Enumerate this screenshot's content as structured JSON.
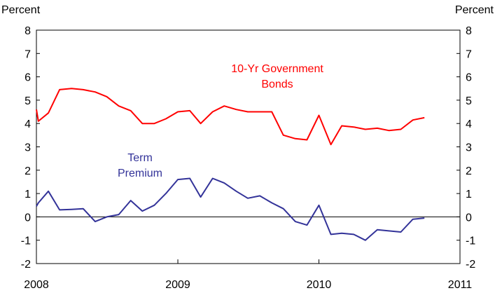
{
  "chart_data": {
    "type": "line",
    "ylabel_left": "Percent",
    "ylabel_right": "Percent",
    "ylim": [
      -2,
      8
    ],
    "yticks": [
      "-2",
      "-1",
      "0",
      "1",
      "2",
      "3",
      "4",
      "5",
      "6",
      "7",
      "8"
    ],
    "xlim": [
      "2008-01-01",
      "2011-01-01"
    ],
    "xtick_labels": [
      "2008",
      "2009",
      "2010",
      "2011"
    ],
    "grid": false,
    "series": [
      {
        "name": "10-Yr Government Bonds",
        "label_lines": [
          "10-Yr Government",
          "Bonds"
        ],
        "color": "#ff0000",
        "dates": [
          "2008-01-01",
          "2008-01-06",
          "2008-02-01",
          "2008-03-01",
          "2008-04-01",
          "2008-05-01",
          "2008-06-01",
          "2008-07-01",
          "2008-08-01",
          "2008-09-01",
          "2008-10-01",
          "2008-11-01",
          "2008-12-01",
          "2009-01-01",
          "2009-02-01",
          "2009-03-01",
          "2009-04-01",
          "2009-05-01",
          "2009-06-01",
          "2009-07-01",
          "2009-08-01",
          "2009-09-01",
          "2009-10-01",
          "2009-11-01",
          "2009-12-01",
          "2010-01-01",
          "2010-02-01",
          "2010-03-01",
          "2010-04-01",
          "2010-05-01",
          "2010-06-01",
          "2010-07-01",
          "2010-08-01",
          "2010-09-01",
          "2010-10-01"
        ],
        "values": [
          4.6,
          4.1,
          4.45,
          5.45,
          5.5,
          5.45,
          5.35,
          5.15,
          4.75,
          4.55,
          4.0,
          4.0,
          4.2,
          4.5,
          4.55,
          4.0,
          4.5,
          4.75,
          4.6,
          4.5,
          4.5,
          4.5,
          3.5,
          3.35,
          3.3,
          4.35,
          3.1,
          3.9,
          3.85,
          3.75,
          3.8,
          3.7,
          3.75,
          4.15,
          4.25
        ]
      },
      {
        "name": "Term Premium",
        "label_lines": [
          "Term",
          "Premium"
        ],
        "color": "#333399",
        "dates": [
          "2008-01-01",
          "2008-01-06",
          "2008-02-01",
          "2008-03-01",
          "2008-04-01",
          "2008-05-01",
          "2008-06-01",
          "2008-07-01",
          "2008-08-01",
          "2008-09-01",
          "2008-10-01",
          "2008-11-01",
          "2008-12-01",
          "2009-01-01",
          "2009-02-01",
          "2009-03-01",
          "2009-04-01",
          "2009-05-01",
          "2009-06-01",
          "2009-07-01",
          "2009-08-01",
          "2009-09-01",
          "2009-10-01",
          "2009-11-01",
          "2009-12-01",
          "2010-01-01",
          "2010-02-01",
          "2010-03-01",
          "2010-04-01",
          "2010-05-01",
          "2010-06-01",
          "2010-07-01",
          "2010-08-01",
          "2010-09-01",
          "2010-10-01"
        ],
        "values": [
          0.45,
          0.6,
          1.1,
          0.3,
          0.32,
          0.35,
          -0.2,
          0.0,
          0.1,
          0.7,
          0.25,
          0.5,
          1.0,
          1.6,
          1.65,
          0.85,
          1.65,
          1.45,
          1.1,
          0.8,
          0.9,
          0.6,
          0.35,
          -0.2,
          -0.35,
          0.5,
          -0.75,
          -0.7,
          -0.75,
          -1.0,
          -0.55,
          -0.6,
          -0.65,
          -0.1,
          -0.05
        ]
      }
    ]
  }
}
